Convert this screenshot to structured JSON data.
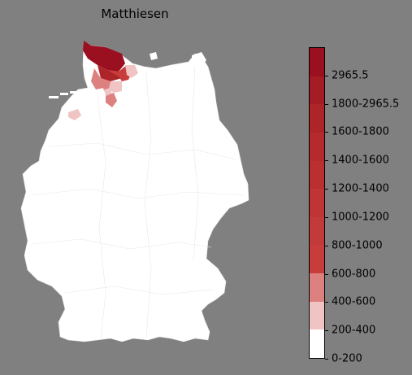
{
  "title": "Matthiesen",
  "map": {
    "base_fill": "#ffffff",
    "border_color": "#dddddd"
  },
  "legend": {
    "swatches": [
      "#ffffff",
      "#f1c4c4",
      "#dd8080",
      "#c83c3c",
      "#c33a3a",
      "#bf3535",
      "#ba2f30",
      "#b42a2d",
      "#ad2429",
      "#a51d24",
      "#9b1020"
    ],
    "labels": [
      "0-200",
      "200-400",
      "400-600",
      "600-800",
      "800-1000",
      "1000-1200",
      "1200-1400",
      "1400-1600",
      "1600-1800",
      "1800-2965.5",
      "2965.5"
    ],
    "label_positions": [
      0,
      1,
      2,
      3,
      4,
      5,
      6,
      7,
      8,
      9,
      10
    ]
  }
}
